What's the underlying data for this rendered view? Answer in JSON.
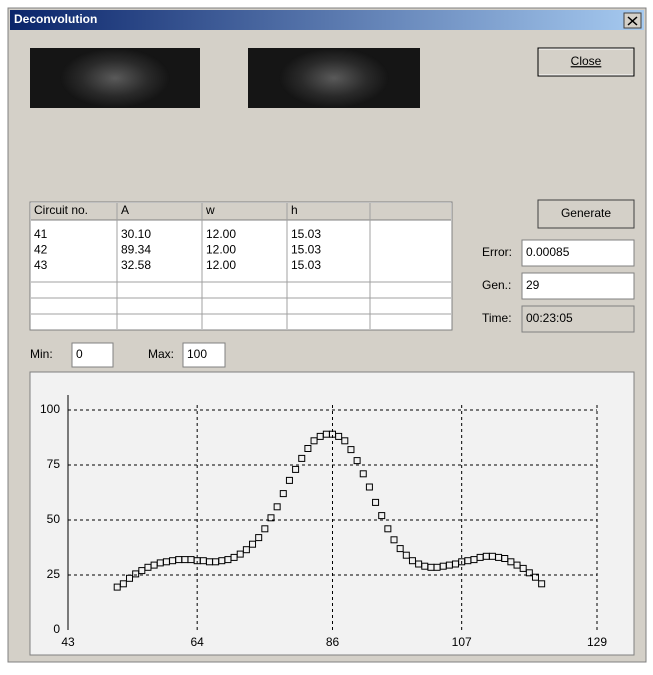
{
  "window": {
    "title": "Deconvolution"
  },
  "buttons": {
    "close": "Close",
    "generate": "Generate"
  },
  "table": {
    "columns": [
      "Circuit no.",
      "A",
      "w",
      "h"
    ],
    "rows": [
      [
        "41",
        "30.10",
        "12.00",
        "15.03"
      ],
      [
        "42",
        "89.34",
        "12.00",
        "15.03"
      ],
      [
        "43",
        "32.58",
        "12.00",
        "15.03"
      ]
    ]
  },
  "fields": {
    "error_label": "Error:",
    "error": "0.00085",
    "gen_label": "Gen.:",
    "gen": "29",
    "time_label": "Time:",
    "time": "00:23:05",
    "min_label": "Min:",
    "min": "0",
    "max_label": "Max:",
    "max": "100"
  },
  "chart_data": {
    "type": "scatter",
    "color": "#000000",
    "grid": true,
    "x": [
      51,
      52,
      53,
      54,
      55,
      56,
      57,
      58,
      59,
      60,
      61,
      62,
      63,
      64,
      65,
      66,
      67,
      68,
      69,
      70,
      71,
      72,
      73,
      74,
      75,
      76,
      77,
      78,
      79,
      80,
      81,
      82,
      83,
      84,
      85,
      86,
      87,
      88,
      89,
      90,
      91,
      92,
      93,
      94,
      95,
      96,
      97,
      98,
      99,
      100,
      101,
      102,
      103,
      104,
      105,
      106,
      107,
      108,
      109,
      110,
      111,
      112,
      113,
      114,
      115,
      116,
      117,
      118,
      119,
      120
    ],
    "values": [
      19.5,
      21,
      23.5,
      25.5,
      27,
      28.5,
      29.5,
      30.5,
      31,
      31.5,
      32,
      32,
      32,
      31.5,
      31.5,
      31,
      31,
      31.5,
      32,
      33,
      34.5,
      36.5,
      39,
      42,
      46,
      51,
      56,
      62,
      68,
      73,
      78,
      82.5,
      86,
      88,
      89,
      89,
      88,
      86,
      82,
      77,
      71,
      65,
      58,
      52,
      46,
      41,
      37,
      34,
      31.5,
      30,
      29,
      28.5,
      28.5,
      29,
      29.5,
      30,
      31,
      31.5,
      32,
      33,
      33.5,
      33.5,
      33,
      32.5,
      31,
      29.5,
      28,
      26,
      24,
      21
    ],
    "xlim": [
      43,
      129
    ],
    "xticks": [
      43,
      64,
      86,
      107,
      129
    ],
    "ylim": [
      0,
      100
    ],
    "yticks": [
      0,
      25,
      50,
      75,
      100
    ]
  }
}
